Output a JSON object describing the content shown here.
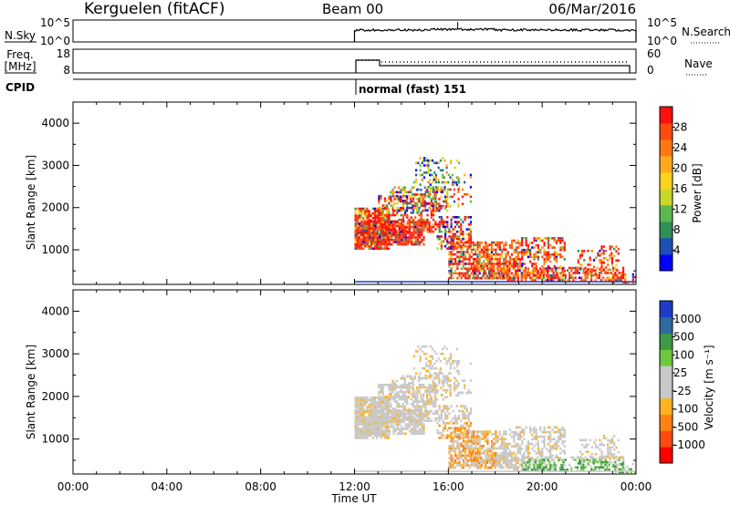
{
  "header": {
    "station": "Kerguelen (fitACF)",
    "beam": "Beam 00",
    "date": "06/Mar/2016"
  },
  "strips": {
    "nsky": {
      "label": "N.Sky",
      "ticks": [
        "10^5",
        "10^0"
      ],
      "right_label": "N.Search",
      "right_ticks": [
        "10^5",
        "10^0"
      ]
    },
    "freq": {
      "label_line1": "Freq.",
      "label_line2": "[MHz]",
      "ticks": [
        "18",
        "8"
      ],
      "right_label": "Nave",
      "right_ticks": [
        "60",
        "0"
      ]
    },
    "cpid": {
      "label": "CPID",
      "mode_text": "normal (fast) 151"
    }
  },
  "chart_data": [
    {
      "type": "heatmap",
      "name": "power",
      "ylabel": "Slant Range [km]",
      "x_range_hours": [
        0,
        24
      ],
      "ylim": [
        180,
        4500
      ],
      "yticks": [
        "1000",
        "2000",
        "3000",
        "4000"
      ],
      "colorbar": {
        "label": "Power [dB]",
        "ticks": [
          "28",
          "24",
          "20",
          "16",
          "12",
          "8",
          "4"
        ],
        "colors": [
          "#0000ff",
          "#1e50b4",
          "#2f8f58",
          "#5cb84b",
          "#c8d826",
          "#ffd21e",
          "#ffaa1e",
          "#ff7814",
          "#ff4a10",
          "#ff1010"
        ]
      },
      "data_hours": [
        12,
        24
      ]
    },
    {
      "type": "heatmap",
      "name": "velocity",
      "ylabel": "Slant Range [km]",
      "x_range_hours": [
        0,
        24
      ],
      "ylim": [
        180,
        4500
      ],
      "yticks": [
        "1000",
        "2000",
        "3000",
        "4000"
      ],
      "colorbar": {
        "label": "Velocity [m s⁻¹]",
        "ticks": [
          "1000",
          "500",
          "100",
          "25",
          "-25",
          "-100",
          "-500",
          "-1000"
        ],
        "colors": [
          "#ff0000",
          "#ff4a14",
          "#ff8214",
          "#ffb420",
          "#c8c8c8",
          "#c8c8c8",
          "#6cc83c",
          "#3c9a48",
          "#2e6aa0",
          "#1e3cc8"
        ]
      },
      "data_hours": [
        12,
        24
      ]
    }
  ],
  "xaxis": {
    "ticks": [
      "00:00",
      "04:00",
      "08:00",
      "12:00",
      "16:00",
      "20:00",
      "00:00"
    ],
    "label": "Time UT"
  }
}
